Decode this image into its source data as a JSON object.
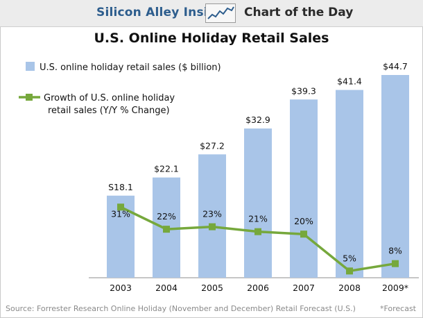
{
  "header": {
    "brand": "Silicon Alley Insider",
    "brand_icon": "rising-line-chart-icon",
    "section": "Chart of the Day"
  },
  "chart_data": {
    "type": "bar",
    "title": "U.S. Online Holiday Retail Sales",
    "categories": [
      "2003",
      "2004",
      "2005",
      "2006",
      "2007",
      "2008",
      "2009*"
    ],
    "series": [
      {
        "name": "U.S. online holiday retail sales ($ billion)",
        "type": "bar",
        "values": [
          18.1,
          22.1,
          27.2,
          32.9,
          39.3,
          41.4,
          44.7
        ],
        "labels": [
          "S18.1",
          "$22.1",
          "$27.2",
          "$32.9",
          "$39.3",
          "$41.4",
          "$44.7"
        ],
        "color": "#a9c5e8"
      },
      {
        "name": "Growth of U.S. online holiday retail sales (Y/Y % Change)",
        "name_lines": [
          "Growth of U.S. online holiday",
          "retail sales (Y/Y % Change)"
        ],
        "type": "line",
        "values": [
          31,
          22,
          23,
          21,
          20,
          5,
          8
        ],
        "labels": [
          "31%",
          "22%",
          "23%",
          "21%",
          "20%",
          "5%",
          "8%"
        ],
        "color": "#76a83c"
      }
    ],
    "grid": false,
    "legend": "top-left"
  },
  "footer": {
    "source": "Source: Forrester Research Online Holiday (November and December) Retail Forecast (U.S.)",
    "note": "*Forecast"
  }
}
